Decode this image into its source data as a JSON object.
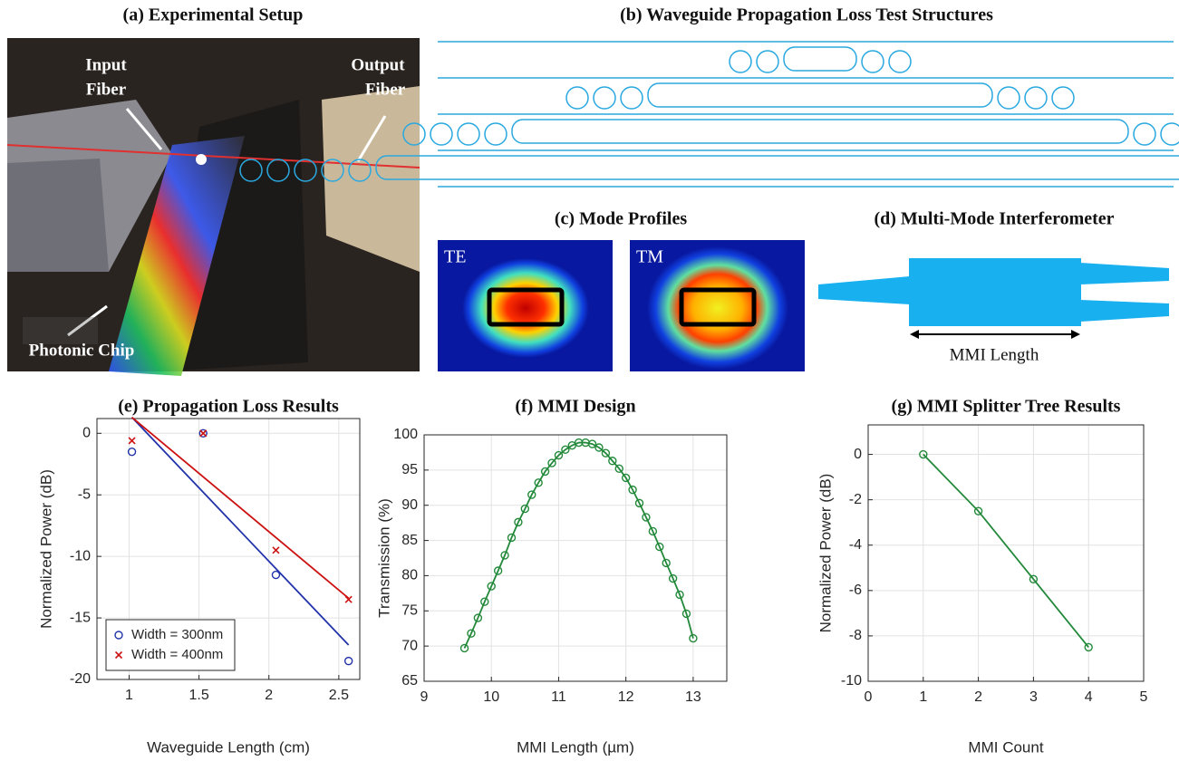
{
  "panel_a": {
    "title": "(a) Experimental Setup",
    "input_label": [
      "Input",
      "Fiber"
    ],
    "output_label": [
      "Output",
      "Fiber"
    ],
    "chip_label": "Photonic Chip"
  },
  "panel_b": {
    "title": "(b) Waveguide Propagation Loss Test Structures"
  },
  "panel_c": {
    "title": "(c) Mode Profiles",
    "modes": [
      "TE",
      "TM"
    ]
  },
  "panel_d": {
    "title": "(d) Multi-Mode Interferometer",
    "dimension_label": "MMI Length"
  },
  "chart_data": [
    {
      "type": "scatter",
      "title": "(e) Propagation Loss Results",
      "x_label": "Waveguide Length (cm)",
      "y_label": "Normalized Power (dB)",
      "xlim": [
        0.77,
        2.65
      ],
      "ylim": [
        -20,
        1.2
      ],
      "xticks": [
        1,
        1.5,
        2,
        2.5
      ],
      "yticks": [
        -20,
        -15,
        -10,
        -5,
        0
      ],
      "grid": true,
      "legend": "lower left",
      "series": [
        {
          "name": "Width = 300nm",
          "color": "#2233aa",
          "marker": "o",
          "x": [
            1.02,
            1.53,
            2.05,
            2.57
          ],
          "values": [
            -1.5,
            0,
            -11.5,
            -18.5
          ]
        },
        {
          "name": "Width = 400nm",
          "color": "#cc1111",
          "marker": "x",
          "x": [
            1.02,
            1.53,
            2.05,
            2.57
          ],
          "values": [
            -0.6,
            0,
            -9.5,
            -13.5
          ]
        },
        {
          "color": "#2233aa",
          "line": true,
          "x": [
            1.02,
            2.57
          ],
          "values": [
            1.3,
            -17.2
          ]
        },
        {
          "color": "#cc1111",
          "line": true,
          "x": [
            1.02,
            2.57
          ],
          "values": [
            1.3,
            -13.4
          ]
        }
      ]
    },
    {
      "type": "line",
      "title": "(f) MMI Design",
      "x_label": "MMI Length (µm)",
      "y_label": "Transmission (%)",
      "xlim": [
        9,
        13.5
      ],
      "ylim": [
        65,
        100
      ],
      "xticks": [
        9,
        10,
        11,
        12,
        13
      ],
      "yticks": [
        65,
        70,
        75,
        80,
        85,
        90,
        95,
        100
      ],
      "grid": true,
      "series": [
        {
          "color": "#23893a",
          "marker": "o",
          "line": true,
          "x": [
            9.6,
            9.7,
            9.8,
            9.9,
            10.0,
            10.1,
            10.2,
            10.3,
            10.4,
            10.5,
            10.6,
            10.7,
            10.8,
            10.9,
            11.0,
            11.1,
            11.2,
            11.3,
            11.4,
            11.5,
            11.6,
            11.7,
            11.8,
            11.9,
            12.0,
            12.1,
            12.2,
            12.3,
            12.4,
            12.5,
            12.6,
            12.7,
            12.8,
            12.9,
            13.0
          ],
          "values": [
            69.7,
            71.8,
            74.0,
            76.3,
            78.5,
            80.7,
            82.9,
            85.4,
            87.6,
            89.5,
            91.5,
            93.2,
            94.8,
            96.0,
            97.1,
            97.9,
            98.5,
            98.9,
            98.9,
            98.7,
            98.2,
            97.4,
            96.3,
            95.2,
            93.9,
            92.2,
            90.3,
            88.3,
            86.3,
            84.1,
            81.8,
            79.6,
            77.3,
            74.6,
            71.1
          ]
        }
      ]
    },
    {
      "type": "line",
      "title": "(g) MMI Splitter Tree Results",
      "x_label": "MMI Count",
      "y_label": "Normalized Power (dB)",
      "xlim": [
        0,
        5
      ],
      "ylim": [
        -10,
        1.3
      ],
      "xticks": [
        0,
        1,
        2,
        3,
        4,
        5
      ],
      "yticks": [
        -10,
        -8,
        -6,
        -4,
        -2,
        0
      ],
      "grid": true,
      "series": [
        {
          "color": "#23893a",
          "marker": "o",
          "line": true,
          "x": [
            1,
            2,
            3,
            4
          ],
          "values": [
            0,
            -2.5,
            -5.5,
            -8.5
          ]
        }
      ]
    }
  ]
}
